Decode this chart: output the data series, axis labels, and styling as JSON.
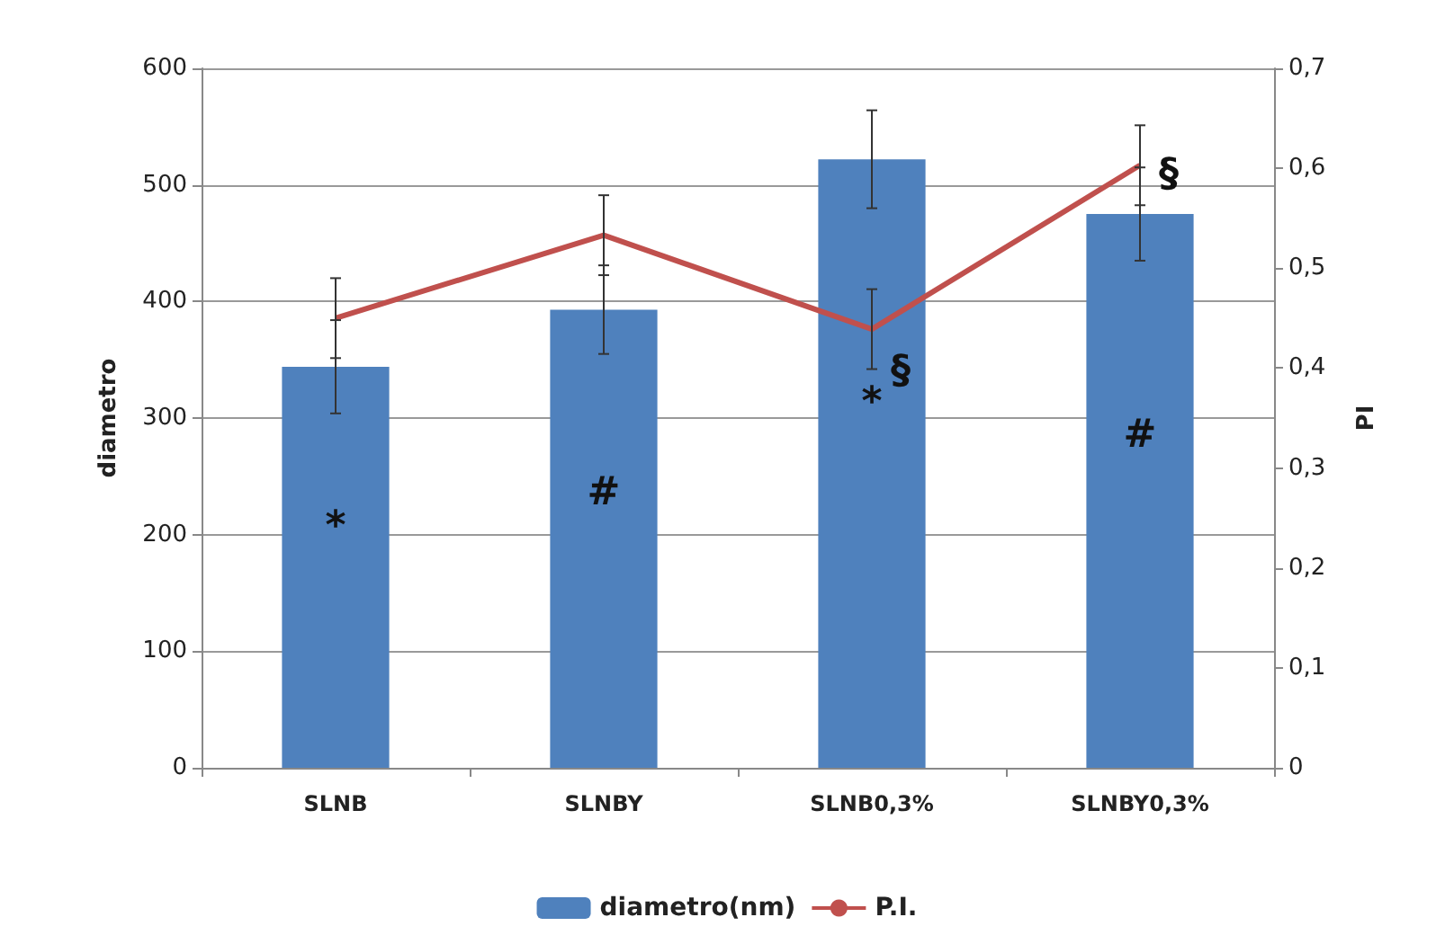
{
  "chart_data": {
    "type": "bar",
    "xlabel": null,
    "ylabel": "diametro",
    "y2label": "PI",
    "categories": [
      "SLNB",
      "SLNBY",
      "SLNB0,3%",
      "SLNBY0,3%"
    ],
    "series": [
      {
        "name": "diametro(nm)",
        "color": "#4f81bd",
        "values": [
          344,
          393,
          522,
          475
        ],
        "errors": [
          40,
          38,
          42,
          40
        ]
      },
      {
        "name": "P.I.",
        "type": "line",
        "axis": "y2",
        "color": "#c0504d",
        "values": [
          0.45,
          0.533,
          0.439,
          0.603
        ],
        "errors": [
          0.04,
          0.04,
          0.04,
          0.04
        ],
        "marker": "none"
      }
    ],
    "ylim": [
      0,
      600
    ],
    "yticks": [
      0,
      100,
      200,
      300,
      400,
      500,
      600
    ],
    "y2lim": [
      0,
      0.7
    ],
    "y2ticks": [
      {
        "value": 0,
        "label": "0"
      },
      {
        "value": 0.1,
        "label": "0,1"
      },
      {
        "value": 0.2,
        "label": "0,2"
      },
      {
        "value": 0.3,
        "label": "0,3"
      },
      {
        "value": 0.4,
        "label": "0,4"
      },
      {
        "value": 0.5,
        "label": "0,5"
      },
      {
        "value": 0.6,
        "label": "0,6"
      },
      {
        "value": 0.7,
        "label": "0,7"
      }
    ],
    "annotations": [
      "*",
      "#",
      "*",
      "#",
      {
        "text": "§",
        "x": "SLNB0,3%",
        "y": 340
      },
      {
        "text": "§",
        "x": "SLNBY0,3%",
        "y": 509
      }
    ],
    "grid": "y",
    "legend": "bottom"
  }
}
